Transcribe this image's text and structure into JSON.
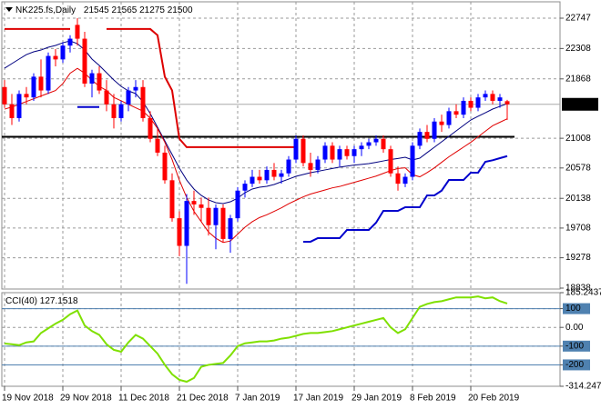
{
  "chart_data": [
    {
      "type": "candlestick",
      "title": "NK225.fs,Daily",
      "categories": [
        "19 Nov 2018",
        null,
        null,
        null,
        null,
        null,
        null,
        null,
        "29 Nov 2018",
        null,
        null,
        null,
        null,
        null,
        null,
        null,
        "11 Dec 2018",
        null,
        null,
        null,
        null,
        null,
        null,
        null,
        "21 Dec 2018",
        null,
        null,
        null,
        null,
        null,
        null,
        null,
        "7 Jan 2019",
        null,
        null,
        null,
        null,
        null,
        null,
        null,
        "17 Jan 2019",
        null,
        null,
        null,
        null,
        null,
        null,
        null,
        "29 Jan 2019",
        null,
        null,
        null,
        null,
        null,
        null,
        null,
        "8 Feb 2019",
        null,
        null,
        null,
        null,
        null,
        null,
        null,
        "20 Feb 2019",
        null,
        null,
        null,
        null,
        null
      ],
      "open": [
        21750,
        21500,
        21300,
        21650,
        21600,
        21900,
        21700,
        22200,
        22150,
        22350,
        22650,
        22450,
        21800,
        21950,
        21700,
        21500,
        21300,
        21500,
        21700,
        21750,
        21300,
        21000,
        20800,
        20400,
        19850,
        19450,
        20100,
        20050,
        20000,
        19750,
        20000,
        19550,
        19850,
        20250,
        20350,
        20450,
        20400,
        20550,
        20450,
        20500,
        20700,
        21000,
        20650,
        20550,
        20700,
        20900,
        20700,
        20850,
        20750,
        20850,
        20900,
        20950,
        21000,
        20850,
        20500,
        20350,
        20450,
        20900,
        21100,
        21000,
        21250,
        21200,
        21400,
        21350,
        21550,
        21450,
        21600,
        21650,
        21550,
        21545
      ],
      "high": [
        21850,
        21650,
        21700,
        21750,
        21950,
        22150,
        22250,
        22300,
        22400,
        22500,
        22747,
        22550,
        22000,
        22050,
        21850,
        21650,
        21550,
        21750,
        21850,
        21850,
        21400,
        21150,
        20900,
        20500,
        19950,
        20200,
        20250,
        20150,
        20150,
        20050,
        20050,
        19900,
        20300,
        20400,
        20550,
        20550,
        20600,
        20650,
        20550,
        20750,
        21050,
        21050,
        20800,
        20750,
        20950,
        20950,
        20900,
        20900,
        20900,
        20950,
        21000,
        21050,
        21050,
        20900,
        20600,
        20500,
        20950,
        21150,
        21200,
        21300,
        21350,
        21450,
        21500,
        21600,
        21600,
        21650,
        21700,
        21700,
        21650,
        21565
      ],
      "low": [
        21450,
        21200,
        21250,
        21500,
        21550,
        21600,
        21650,
        22050,
        22100,
        22250,
        22350,
        21750,
        21600,
        21650,
        21400,
        21150,
        21250,
        21400,
        21600,
        21250,
        20950,
        20750,
        20350,
        19800,
        19300,
        18900,
        19900,
        19800,
        19600,
        19400,
        19500,
        19350,
        19800,
        20150,
        20300,
        20350,
        20350,
        20400,
        20350,
        20450,
        20650,
        20600,
        20450,
        20500,
        20650,
        20650,
        20600,
        20700,
        20650,
        20750,
        20850,
        20900,
        20800,
        20450,
        20250,
        20300,
        20400,
        20850,
        20950,
        20950,
        21100,
        21150,
        21300,
        21300,
        21400,
        21400,
        21550,
        21500,
        21450,
        21275
      ],
      "close": [
        21500,
        21300,
        21650,
        21600,
        21900,
        21700,
        22200,
        22150,
        22350,
        22450,
        22450,
        21800,
        21950,
        21700,
        21500,
        21300,
        21500,
        21700,
        21750,
        21300,
        21000,
        20800,
        20400,
        19850,
        19450,
        20100,
        20050,
        20000,
        19750,
        20000,
        19550,
        19850,
        20250,
        20350,
        20450,
        20400,
        20550,
        20450,
        20500,
        20700,
        21000,
        20650,
        20550,
        20700,
        20900,
        20700,
        20850,
        20750,
        20850,
        20900,
        20950,
        21000,
        20850,
        20500,
        20350,
        20450,
        20900,
        21100,
        21000,
        21250,
        21200,
        21400,
        21350,
        21550,
        21450,
        21600,
        21650,
        21550,
        21600,
        21500
      ],
      "up_color": "#0000ff",
      "down_color": "#ff0000",
      "series": [
        {
          "color": "#000080",
          "width": 1,
          "values": [
            22023,
            22089,
            22155,
            22220,
            22260,
            22286,
            22326,
            22352,
            22391,
            22418,
            22378,
            22286,
            22155,
            22063,
            21957,
            21852,
            21760,
            21694,
            21655,
            21536,
            21365,
            21168,
            20970,
            20773,
            20575,
            20404,
            20273,
            20181,
            20115,
            20075,
            20062,
            20088,
            20141,
            20220,
            20273,
            20299,
            20312,
            20339,
            20378,
            20417,
            20457,
            20483,
            20510,
            20530,
            20550,
            20570,
            20590,
            20605,
            20620,
            20630,
            20641,
            20660,
            20680,
            20700,
            20715,
            20733,
            20694,
            20720,
            20800,
            20878,
            20957,
            21036,
            21115,
            21194,
            21273,
            21326,
            21378,
            21431,
            21470,
            21510
          ]
        },
        {
          "color": "#e00000",
          "width": 1,
          "values": [
            21430,
            21460,
            21500,
            21540,
            21580,
            21620,
            21660,
            21700,
            21800,
            21950,
            22020,
            21950,
            21850,
            21760,
            21700,
            21600,
            21550,
            21500,
            21450,
            21400,
            21300,
            21150,
            20950,
            20700,
            20400,
            20150,
            19950,
            19800,
            19650,
            19560,
            19500,
            19520,
            19620,
            19720,
            19800,
            19860,
            19900,
            19950,
            20000,
            20060,
            20110,
            20160,
            20200,
            20230,
            20260,
            20290,
            20310,
            20340,
            20370,
            20400,
            20430,
            20460,
            20500,
            20540,
            20570,
            20580,
            20480,
            20450,
            20510,
            20580,
            20660,
            20740,
            20810,
            20880,
            20950,
            21030,
            21110,
            21190,
            21240,
            21290
          ]
        },
        {
          "color": "#dd0000",
          "width": 2,
          "values": [
            22590,
            22590,
            22590,
            22590,
            22590,
            22590,
            22590,
            22590,
            22590,
            22590,
            null,
            null,
            null,
            null,
            22590,
            22590,
            22590,
            22590,
            22590,
            22590,
            22590,
            22500,
            21900,
            21700,
            21000,
            20880,
            20880,
            20880,
            20880,
            20880,
            20880,
            20880,
            20880,
            20880,
            20880,
            20880,
            20880,
            20880,
            20880,
            20880,
            20880,
            null,
            null,
            null,
            null,
            null,
            null,
            null,
            null,
            null,
            null,
            null,
            null,
            null,
            null,
            null,
            null,
            null,
            null,
            null,
            null,
            null,
            null,
            null,
            null,
            null,
            null,
            null,
            null,
            null
          ]
        },
        {
          "color": "#0000cc",
          "width": 2,
          "values": [
            null,
            null,
            null,
            null,
            null,
            null,
            null,
            null,
            null,
            null,
            21460,
            21460,
            21460,
            21460,
            null,
            null,
            null,
            null,
            null,
            null,
            null,
            null,
            null,
            null,
            null,
            null,
            null,
            null,
            null,
            null,
            null,
            null,
            null,
            null,
            null,
            null,
            null,
            null,
            null,
            null,
            null,
            19510,
            19510,
            19562,
            19562,
            19562,
            19562,
            19680,
            19680,
            19680,
            19680,
            19786,
            19957,
            19957,
            19957,
            20010,
            20010,
            20010,
            20181,
            20181,
            20250,
            20404,
            20404,
            20404,
            20510,
            20510,
            20668,
            20690,
            20720,
            20750
          ]
        }
      ],
      "hline": {
        "value": 21030,
        "color": "#000000"
      },
      "ylim": [
        18825,
        22984
      ],
      "yticks": [
        22747,
        22308,
        21868,
        21008,
        20578,
        20138,
        19708,
        19278,
        18838
      ],
      "grid": true
    },
    {
      "type": "line",
      "title": "CCI(40)",
      "series": [
        {
          "color": "#7fe000",
          "width": 2,
          "values": [
            -86,
            -90,
            -95,
            -80,
            -75,
            -30,
            -5,
            20,
            40,
            70,
            90,
            10,
            -20,
            -40,
            -90,
            -120,
            -130,
            -80,
            -40,
            -60,
            -100,
            -140,
            -200,
            -250,
            -280,
            -290,
            -270,
            -210,
            -200,
            -195,
            -190,
            -150,
            -100,
            -85,
            -80,
            -75,
            -75,
            -70,
            -60,
            -55,
            -45,
            -35,
            -30,
            -30,
            -25,
            -20,
            -10,
            0,
            10,
            20,
            30,
            40,
            50,
            0,
            -30,
            -10,
            50,
            110,
            125,
            135,
            140,
            150,
            160,
            160,
            160,
            165,
            155,
            160,
            140,
            127.1518
          ]
        }
      ],
      "levels": [
        100,
        -100,
        -200
      ],
      "level_color": "#4f81b0",
      "ylim": [
        -314.2474,
        185.2437
      ],
      "yticks": [
        185.2437,
        100,
        {
          "value": 0,
          "label": "0.00"
        },
        -100,
        -200,
        -314.2474
      ],
      "grid": true
    }
  ]
}
